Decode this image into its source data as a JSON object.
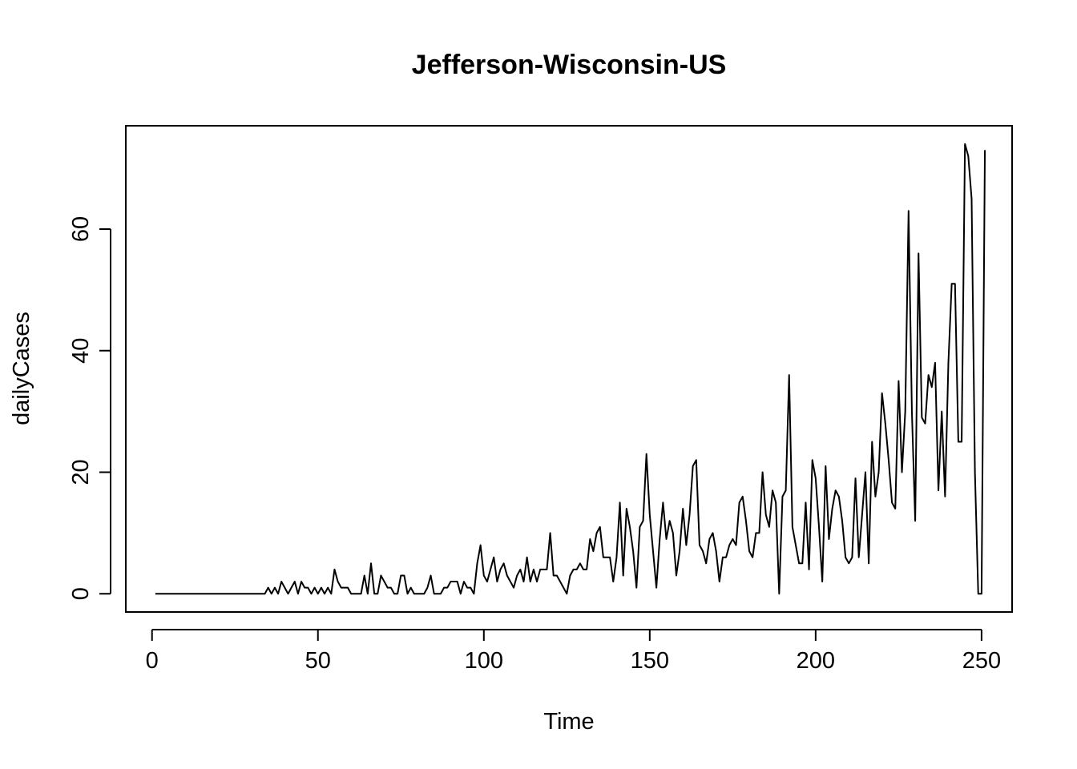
{
  "chart_data": {
    "type": "line",
    "title": "Jefferson-Wisconsin-US",
    "xlabel": "Time",
    "ylabel": "dailyCases",
    "xlim": [
      -7.9,
      259.2
    ],
    "ylim": [
      -3.0,
      77.0
    ],
    "xticks": [
      0,
      50,
      100,
      150,
      200,
      250
    ],
    "yticks": [
      0,
      20,
      40,
      60
    ],
    "grid": false,
    "series": [
      {
        "color": "#000000",
        "x_start": 1,
        "values": [
          0,
          0,
          0,
          0,
          0,
          0,
          0,
          0,
          0,
          0,
          0,
          0,
          0,
          0,
          0,
          0,
          0,
          0,
          0,
          0,
          0,
          0,
          0,
          0,
          0,
          0,
          0,
          0,
          0,
          0,
          0,
          0,
          0,
          0,
          1,
          0,
          1,
          0,
          2,
          1,
          0,
          1,
          2,
          0,
          2,
          1,
          1,
          0,
          1,
          0,
          1,
          0,
          1,
          0,
          4,
          2,
          1,
          1,
          1,
          0,
          0,
          0,
          0,
          3,
          0,
          5,
          0,
          0,
          3,
          2,
          1,
          1,
          0,
          0,
          3,
          3,
          0,
          1,
          0,
          0,
          0,
          0,
          1,
          3,
          0,
          0,
          0,
          1,
          1,
          2,
          2,
          2,
          0,
          2,
          1,
          1,
          0,
          5,
          8,
          3,
          2,
          4,
          6,
          2,
          4,
          5,
          3,
          2,
          1,
          3,
          4,
          2,
          6,
          2,
          4,
          2,
          4,
          4,
          4,
          10,
          3,
          3,
          2,
          1,
          0,
          3,
          4,
          4,
          5,
          4,
          4,
          9,
          7,
          10,
          11,
          6,
          6,
          6,
          2,
          6,
          15,
          3,
          14,
          11,
          7,
          1,
          11,
          12,
          23,
          13,
          7,
          1,
          9,
          15,
          9,
          12,
          10,
          3,
          7,
          14,
          8,
          13,
          21,
          22,
          8,
          7,
          5,
          9,
          10,
          7,
          2,
          6,
          6,
          8,
          9,
          8,
          15,
          16,
          12,
          7,
          6,
          10,
          10,
          20,
          13,
          11,
          17,
          15,
          0,
          16,
          17,
          36,
          11,
          8,
          5,
          5,
          15,
          4,
          22,
          19,
          11,
          2,
          21,
          9,
          14,
          17,
          16,
          12,
          6,
          5,
          6,
          19,
          6,
          13,
          20,
          5,
          25,
          16,
          20,
          33,
          28,
          22,
          15,
          14,
          35,
          20,
          30,
          63,
          30,
          12,
          56,
          29,
          28,
          36,
          34,
          38,
          17,
          30,
          16,
          38,
          51,
          51,
          25,
          25,
          74,
          72,
          65,
          20,
          0,
          0,
          73
        ]
      }
    ]
  }
}
